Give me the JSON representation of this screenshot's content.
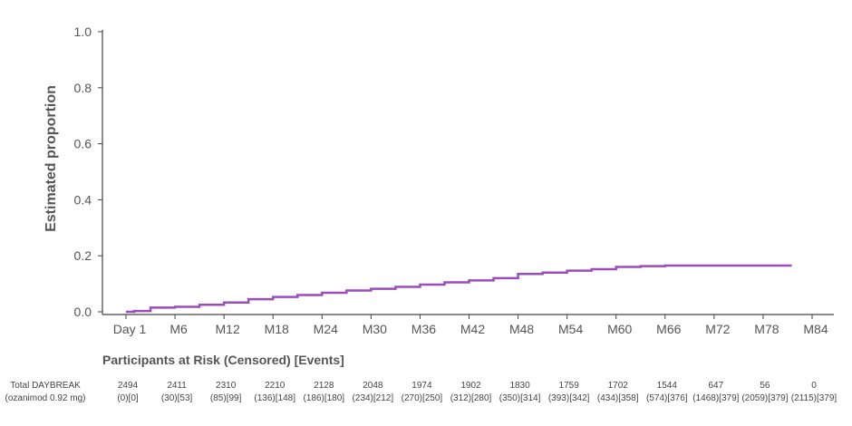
{
  "chart_data": {
    "type": "line",
    "title": "",
    "xlabel": "",
    "ylabel": "Estimated proportion",
    "ylim": [
      0,
      1.0
    ],
    "xlim_months": [
      0,
      84
    ],
    "yticks": [
      "0.0",
      "0.2",
      "0.4",
      "0.6",
      "0.8",
      "1.0"
    ],
    "ytick_values": [
      0,
      0.2,
      0.4,
      0.6,
      0.8,
      1.0
    ],
    "xticks": [
      "Day 1",
      "M6",
      "M12",
      "M18",
      "M24",
      "M30",
      "M36",
      "M42",
      "M48",
      "M54",
      "M60",
      "M66",
      "M72",
      "M78",
      "M84"
    ],
    "xtick_months": [
      0,
      6,
      12,
      18,
      24,
      30,
      36,
      42,
      48,
      54,
      60,
      66,
      72,
      78,
      84
    ],
    "grid": false,
    "series": [
      {
        "name": "Total DAYBREAK (ozanimod 0.92 mg)",
        "color": "#9b4dbb",
        "step": true,
        "x": [
          0,
          1,
          3,
          6,
          9,
          12,
          15,
          18,
          21,
          24,
          27,
          30,
          33,
          36,
          39,
          42,
          45,
          48,
          51,
          54,
          57,
          60,
          63,
          66,
          81.5
        ],
        "y": [
          0,
          0.003,
          0.015,
          0.018,
          0.025,
          0.033,
          0.045,
          0.053,
          0.06,
          0.068,
          0.076,
          0.082,
          0.089,
          0.097,
          0.105,
          0.112,
          0.12,
          0.135,
          0.14,
          0.147,
          0.152,
          0.16,
          0.163,
          0.165,
          0.165
        ]
      }
    ],
    "risk_table": {
      "title": "Participants at Risk (Censored) [Events]",
      "row_label_1": "Total DAYBREAK",
      "row_label_2": "(ozanimod 0.92 mg)",
      "at_risk": [
        "2494",
        "2411",
        "2310",
        "2210",
        "2128",
        "2048",
        "1974",
        "1902",
        "1830",
        "1759",
        "1702",
        "1544",
        "647",
        "56",
        "0"
      ],
      "censored_events": [
        "(0)[0]",
        "(30)[53]",
        "(85)[99]",
        "(136)[148]",
        "(186)[180]",
        "(234)[212]",
        "(270)[250]",
        "(312)[280]",
        "(350)[314]",
        "(393)[342]",
        "(434)[358]",
        "(574)[376]",
        "(1468)[379]",
        "(2059)[379]",
        "(2115)[379]"
      ]
    }
  }
}
